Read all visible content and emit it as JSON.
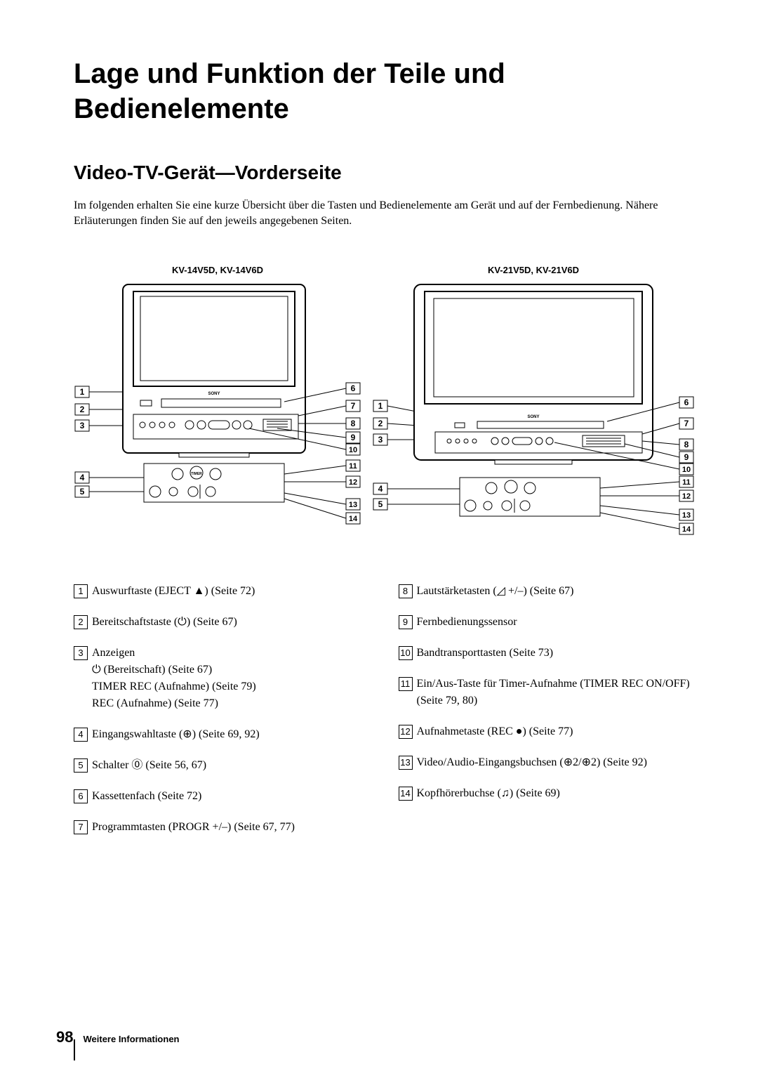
{
  "title": "Lage und Funktion der Teile und Bedienelemente",
  "subtitle": "Video-TV-Gerät—Vorderseite",
  "intro": "Im folgenden erhalten Sie eine kurze Übersicht über die Tasten und Bedienelemente am Gerät und auf der Fernbedienung. Nähere Erläuterungen finden Sie auf den jeweils angegebenen Seiten.",
  "diagram_left_label": "KV-14V5D, KV-14V6D",
  "diagram_right_label": "KV-21V5D, KV-21V6D",
  "left_callouts": [
    "1",
    "2",
    "3",
    "4",
    "5"
  ],
  "mid_left_callouts": [
    "6",
    "7",
    "8",
    "9",
    "10",
    "11",
    "12",
    "13",
    "14"
  ],
  "right_side_left_callouts": [
    "1",
    "2",
    "3",
    "4",
    "5"
  ],
  "right_side_right_callouts": [
    "6",
    "7",
    "8",
    "9",
    "10",
    "11",
    "12",
    "13",
    "14"
  ],
  "items_left": [
    {
      "n": "1",
      "t": "Auswurftaste (EJECT ▲) (Seite 72)"
    },
    {
      "n": "2",
      "t": "Bereitschaftstaste (⏻) (Seite 67)"
    },
    {
      "n": "3",
      "t": "Anzeigen",
      "sub": [
        "⏻ (Bereitschaft) (Seite 67)",
        "TIMER REC (Aufnahme) (Seite 79)",
        "REC (Aufnahme) (Seite 77)"
      ]
    },
    {
      "n": "4",
      "t": "Eingangswahltaste (⊕) (Seite 69, 92)"
    },
    {
      "n": "5",
      "t": "Schalter ⓪ (Seite 56, 67)"
    },
    {
      "n": "6",
      "t": "Kassettenfach (Seite 72)"
    },
    {
      "n": "7",
      "t": "Programmtasten (PROGR +/–) (Seite 67, 77)"
    }
  ],
  "items_right": [
    {
      "n": "8",
      "t": "Lautstärketasten (◿ +/–) (Seite 67)"
    },
    {
      "n": "9",
      "t": "Fernbedienungssensor"
    },
    {
      "n": "10",
      "t": "Bandtransporttasten (Seite 73)"
    },
    {
      "n": "11",
      "t": "Ein/Aus-Taste für Timer-Aufnahme (TIMER REC ON/OFF) (Seite 79, 80)"
    },
    {
      "n": "12",
      "t": "Aufnahmetaste (REC ●) (Seite 77)"
    },
    {
      "n": "13",
      "t": "Video/Audio-Eingangsbuchsen (⊕2/⊕2) (Seite 92)"
    },
    {
      "n": "14",
      "t": "Kopfhörerbuchse (♫) (Seite 69)"
    }
  ],
  "page_number": "98",
  "footer_section": "Weitere Informationen"
}
